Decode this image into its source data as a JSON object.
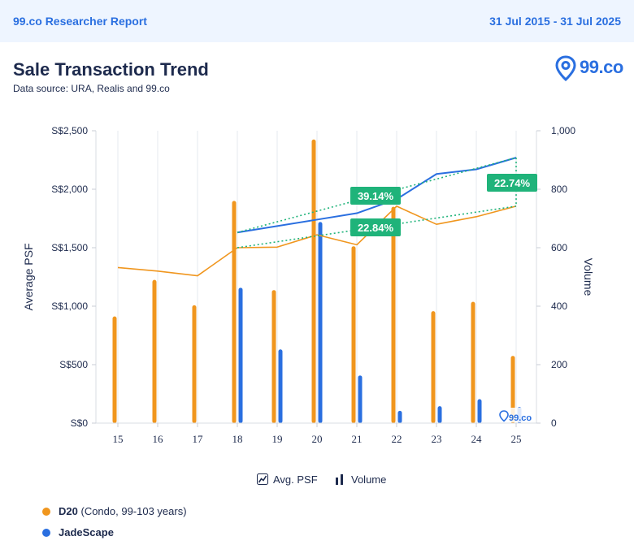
{
  "header": {
    "brand": "99.co Researcher Report",
    "date_range": "31 Jul 2015 - 31 Jul 2025"
  },
  "title": "Sale Transaction Trend",
  "subtitle": "Data source: URA, Realis and 99.co",
  "logo": {
    "text": "99.co",
    "icon": "location-pin-icon"
  },
  "watermark": "99.co",
  "colors": {
    "orange": "#f0961e",
    "blue": "#2a6fe0",
    "green": "#1fb37a",
    "navy": "#1d2a4d"
  },
  "legend": {
    "avg_psf_label": "Avg. PSF",
    "volume_label": "Volume",
    "series_keys": [
      {
        "name": "D20",
        "detail": "(Condo, 99-103 years)",
        "color": "#f0961e"
      },
      {
        "name": "JadeScape",
        "detail": "",
        "color": "#2a6fe0"
      }
    ]
  },
  "chart_data": {
    "type": "bar+line",
    "categories": [
      "15",
      "16",
      "17",
      "18",
      "19",
      "20",
      "21",
      "22",
      "23",
      "24",
      "25"
    ],
    "y_left": {
      "label": "Average PSF",
      "ticks": [
        "S$0",
        "S$500",
        "S$1,000",
        "S$1,500",
        "S$2,000",
        "S$2,500"
      ],
      "range": [
        0,
        2500
      ]
    },
    "y_right": {
      "label": "Volume",
      "ticks": [
        "0",
        "200",
        "400",
        "600",
        "800",
        "1,000"
      ],
      "range": [
        0,
        1000
      ]
    },
    "bars": [
      {
        "name": "D20",
        "values": [
          365,
          490,
          403,
          760,
          455,
          970,
          605,
          740,
          383,
          415,
          230
        ]
      },
      {
        "name": "JadeScape",
        "values": [
          null,
          null,
          null,
          463,
          252,
          688,
          163,
          42,
          58,
          82,
          55
        ]
      }
    ],
    "lines": [
      {
        "name": "D20",
        "values": [
          1330,
          1300,
          1260,
          1500,
          1505,
          1610,
          1525,
          1855,
          1700,
          1765,
          1855
        ]
      },
      {
        "name": "JadeScape",
        "values": [
          null,
          null,
          null,
          1630,
          null,
          1740,
          1795,
          1915,
          2130,
          2170,
          2270
        ]
      }
    ],
    "annotations": [
      {
        "text": "39.14%",
        "series": "JadeScape"
      },
      {
        "text": "22.84%",
        "series": "D20"
      },
      {
        "text": "22.74%",
        "series": "D20"
      }
    ]
  }
}
